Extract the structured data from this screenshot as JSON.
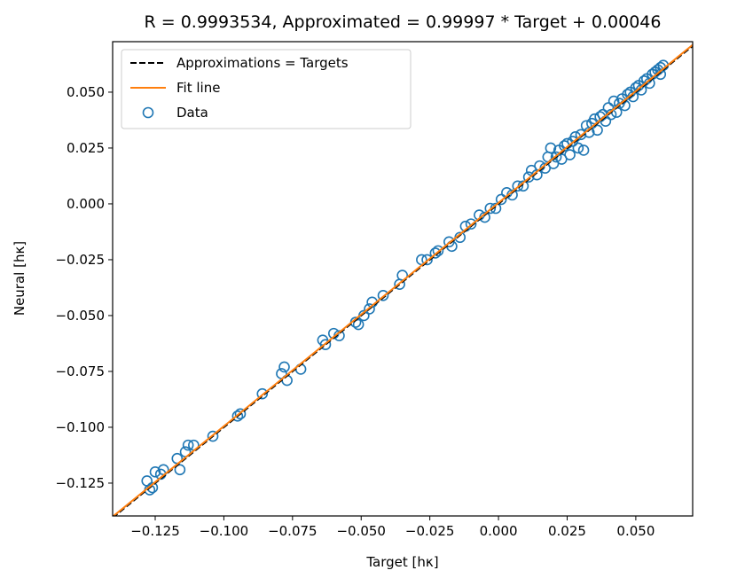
{
  "chart_data": {
    "type": "scatter",
    "title": "R = 0.9993534, Approximated = 0.99997 * Target + 0.00046",
    "xlabel": "Target [hκ]",
    "ylabel": "Neural [hκ]",
    "xlim": [
      -0.1405,
      0.0707
    ],
    "ylim": [
      -0.1397,
      0.0726
    ],
    "xticks": [
      {
        "value": -0.125,
        "label": "−0.125"
      },
      {
        "value": -0.1,
        "label": "−0.100"
      },
      {
        "value": -0.075,
        "label": "−0.075"
      },
      {
        "value": -0.05,
        "label": "−0.050"
      },
      {
        "value": -0.025,
        "label": "−0.025"
      },
      {
        "value": 0,
        "label": "0.000"
      },
      {
        "value": 0.025,
        "label": "0.025"
      },
      {
        "value": 0.05,
        "label": "0.050"
      }
    ],
    "yticks": [
      {
        "value": -0.125,
        "label": "−0.125"
      },
      {
        "value": -0.1,
        "label": "−0.100"
      },
      {
        "value": -0.075,
        "label": "−0.075"
      },
      {
        "value": -0.05,
        "label": "−0.050"
      },
      {
        "value": -0.025,
        "label": "−0.025"
      },
      {
        "value": 0,
        "label": "0.000"
      },
      {
        "value": 0.025,
        "label": "0.025"
      },
      {
        "value": 0.05,
        "label": "0.050"
      }
    ],
    "legend": "upper left",
    "series": [
      {
        "name": "Approximations = Targets",
        "type": "line",
        "style": "dashed",
        "color": "#000000",
        "x": [
          -0.1405,
          0.0707
        ],
        "values": [
          -0.1405,
          0.0707
        ]
      },
      {
        "name": "Fit line",
        "type": "line",
        "style": "solid",
        "color": "#ff7f0e",
        "x": [
          -0.1405,
          0.0707
        ],
        "values": [
          -0.14003,
          0.07116
        ]
      },
      {
        "name": "Data",
        "type": "scatter",
        "color": "#1f77b4",
        "x": [
          -0.128,
          -0.127,
          -0.126,
          -0.125,
          -0.123,
          -0.122,
          -0.117,
          -0.116,
          -0.114,
          -0.113,
          -0.111,
          -0.104,
          -0.095,
          -0.094,
          -0.086,
          -0.079,
          -0.078,
          -0.077,
          -0.072,
          -0.064,
          -0.063,
          -0.06,
          -0.058,
          -0.052,
          -0.051,
          -0.049,
          -0.047,
          -0.046,
          -0.042,
          -0.036,
          -0.035,
          -0.028,
          -0.026,
          -0.023,
          -0.022,
          -0.018,
          -0.017,
          -0.014,
          -0.012,
          -0.01,
          -0.007,
          -0.005,
          -0.003,
          -0.001,
          0.001,
          0.003,
          0.005,
          0.007,
          0.009,
          0.011,
          0.012,
          0.014,
          0.015,
          0.017,
          0.018,
          0.019,
          0.02,
          0.021,
          0.022,
          0.023,
          0.024,
          0.025,
          0.026,
          0.027,
          0.028,
          0.029,
          0.03,
          0.031,
          0.032,
          0.033,
          0.034,
          0.035,
          0.036,
          0.037,
          0.038,
          0.039,
          0.04,
          0.041,
          0.042,
          0.043,
          0.044,
          0.045,
          0.046,
          0.047,
          0.048,
          0.049,
          0.05,
          0.051,
          0.052,
          0.053,
          0.054,
          0.055,
          0.056,
          0.057,
          0.058,
          0.059,
          0.06,
          0.059
        ],
        "values": [
          -0.124,
          -0.128,
          -0.127,
          -0.12,
          -0.121,
          -0.119,
          -0.114,
          -0.119,
          -0.111,
          -0.108,
          -0.108,
          -0.104,
          -0.095,
          -0.094,
          -0.085,
          -0.076,
          -0.073,
          -0.079,
          -0.074,
          -0.061,
          -0.063,
          -0.058,
          -0.059,
          -0.053,
          -0.054,
          -0.05,
          -0.047,
          -0.044,
          -0.041,
          -0.036,
          -0.032,
          -0.025,
          -0.025,
          -0.022,
          -0.021,
          -0.017,
          -0.019,
          -0.015,
          -0.01,
          -0.009,
          -0.005,
          -0.006,
          -0.002,
          -0.002,
          0.002,
          0.005,
          0.004,
          0.008,
          0.008,
          0.012,
          0.015,
          0.013,
          0.017,
          0.016,
          0.021,
          0.025,
          0.018,
          0.021,
          0.024,
          0.02,
          0.026,
          0.027,
          0.022,
          0.028,
          0.03,
          0.025,
          0.031,
          0.024,
          0.035,
          0.032,
          0.036,
          0.038,
          0.033,
          0.039,
          0.04,
          0.037,
          0.043,
          0.04,
          0.046,
          0.041,
          0.045,
          0.047,
          0.044,
          0.049,
          0.05,
          0.048,
          0.052,
          0.053,
          0.051,
          0.055,
          0.056,
          0.054,
          0.058,
          0.059,
          0.06,
          0.061,
          0.062,
          0.058
        ]
      }
    ]
  }
}
